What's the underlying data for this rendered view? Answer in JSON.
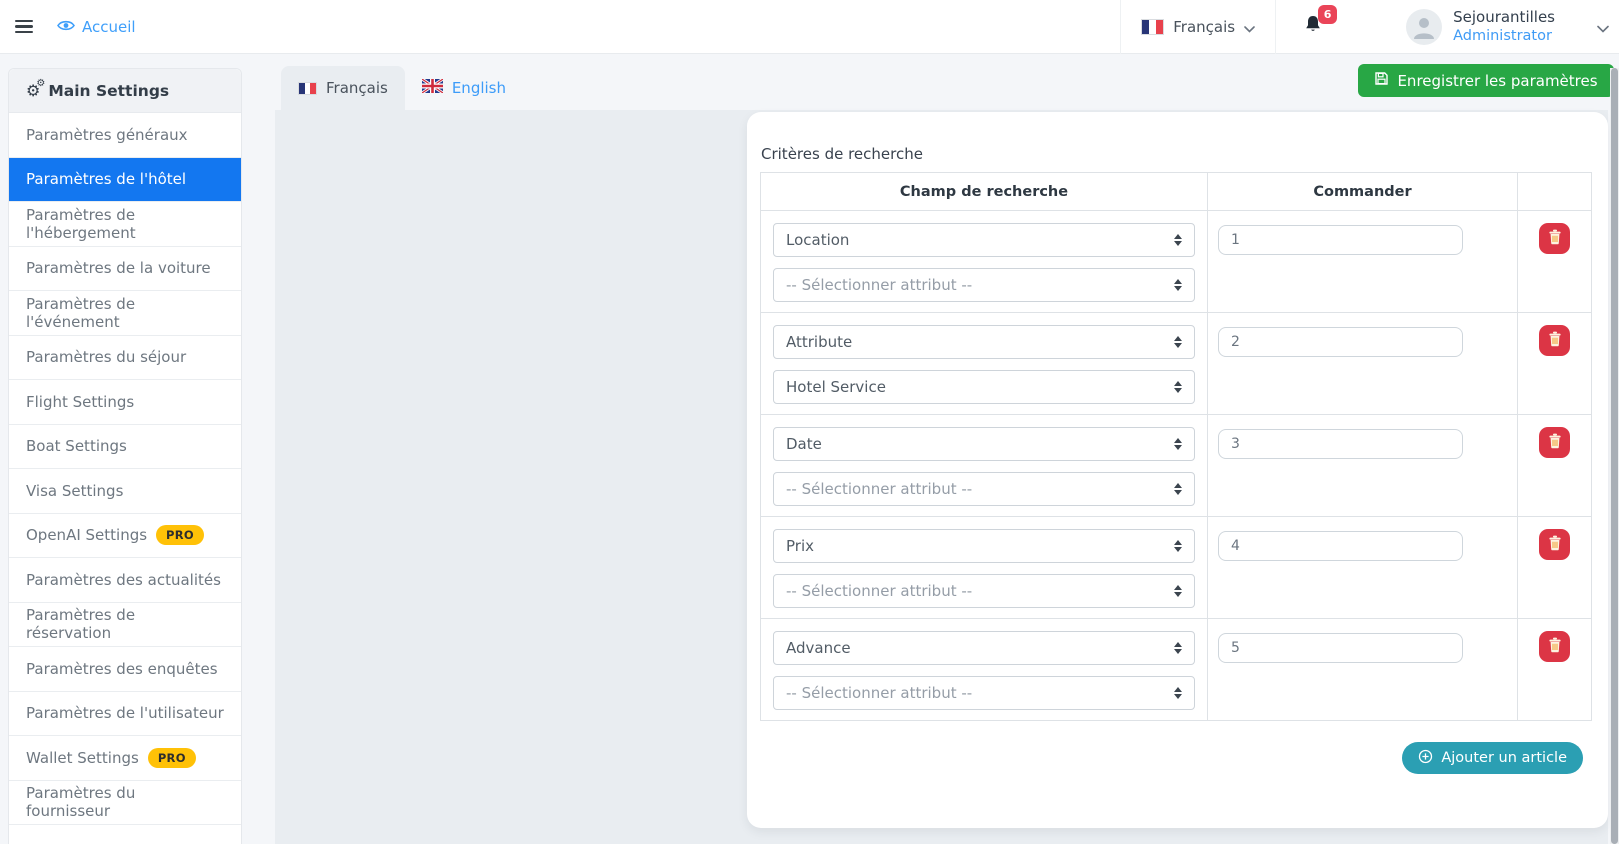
{
  "navbar": {
    "home_label": "Accueil",
    "language": {
      "label": "Français"
    },
    "notifications": {
      "count": "6"
    },
    "user": {
      "name": "Sejourantilles",
      "role": "Administrator"
    }
  },
  "sidebar": {
    "header": "Main Settings",
    "items": [
      {
        "label": "Paramètres généraux",
        "active": false
      },
      {
        "label": "Paramètres de l'hôtel",
        "active": true
      },
      {
        "label": "Paramètres de l'hébergement",
        "active": false
      },
      {
        "label": "Paramètres de la voiture",
        "active": false
      },
      {
        "label": "Paramètres de l'événement",
        "active": false
      },
      {
        "label": "Paramètres du séjour",
        "active": false
      },
      {
        "label": "Flight Settings",
        "active": false
      },
      {
        "label": "Boat Settings",
        "active": false
      },
      {
        "label": "Visa Settings",
        "active": false
      },
      {
        "label": "OpenAI Settings",
        "active": false,
        "badge": "PRO"
      },
      {
        "label": "Paramètres des actualités",
        "active": false
      },
      {
        "label": "Paramètres de réservation",
        "active": false
      },
      {
        "label": "Paramètres des enquêtes",
        "active": false
      },
      {
        "label": "Paramètres de l'utilisateur",
        "active": false
      },
      {
        "label": "Wallet Settings",
        "active": false,
        "badge": "PRO"
      },
      {
        "label": "Paramètres du fournisseur",
        "active": false
      }
    ]
  },
  "tabs": [
    {
      "label": "Français",
      "flag": "fr",
      "active": true
    },
    {
      "label": "English",
      "flag": "en",
      "active": false
    }
  ],
  "save_button": {
    "label": "Enregistrer les paramètres",
    "icon": "save-icon"
  },
  "section": {
    "title": "Critères de recherche",
    "table": {
      "headers": [
        "Champ de recherche",
        "Commander"
      ],
      "rows": [
        {
          "field": "Location",
          "attribute": "-- Sélectionner attribut --",
          "attribute_is_placeholder": true,
          "order": "1"
        },
        {
          "field": "Attribute",
          "attribute": "Hotel Service",
          "attribute_is_placeholder": false,
          "order": "2"
        },
        {
          "field": "Date",
          "attribute": "-- Sélectionner attribut --",
          "attribute_is_placeholder": true,
          "order": "3"
        },
        {
          "field": "Prix",
          "attribute": "-- Sélectionner attribut --",
          "attribute_is_placeholder": true,
          "order": "4"
        },
        {
          "field": "Advance",
          "attribute": "-- Sélectionner attribut --",
          "attribute_is_placeholder": true,
          "order": "5"
        }
      ]
    },
    "add_button": {
      "label": "Ajouter un article",
      "icon": "plus-circle-icon"
    }
  },
  "colors": {
    "active_item_blue": "#1377f0",
    "link_blue": "#3f9ffa",
    "save_green": "#28a745",
    "delete_red": "#dc3545",
    "add_teal": "#2b9fb3",
    "pro_yellow": "#ffc107",
    "panel_gray": "#e9edf1",
    "badge_red": "#ea4458"
  }
}
